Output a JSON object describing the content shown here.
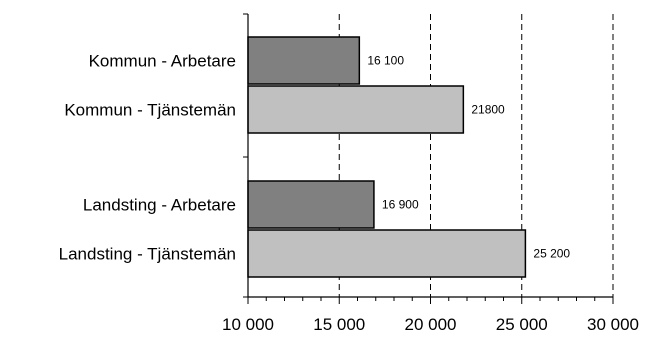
{
  "chart_data": {
    "type": "bar",
    "orientation": "horizontal",
    "xlim": [
      10000,
      30000
    ],
    "major_ticks": [
      10000,
      15000,
      20000,
      25000,
      30000
    ],
    "grid": "vertical dashed at major ticks",
    "bars": [
      {
        "category": "Kommun - Arbetare",
        "value": 16100,
        "label": "16 100",
        "color": "#808080"
      },
      {
        "category": "Kommun - Tjänstemän",
        "value": 21800,
        "label": "21800",
        "color": "#c0c0c0"
      },
      {
        "category": "Landsting -  Arbetare",
        "value": 16900,
        "label": "16 900",
        "color": "#808080"
      },
      {
        "category": "Landsting - Tjänstemän",
        "value": 25200,
        "label": "25 200",
        "color": "#c0c0c0"
      }
    ],
    "tick_labels": [
      "10 000",
      "15 000",
      "20 000",
      "25 000",
      "30 000"
    ]
  }
}
